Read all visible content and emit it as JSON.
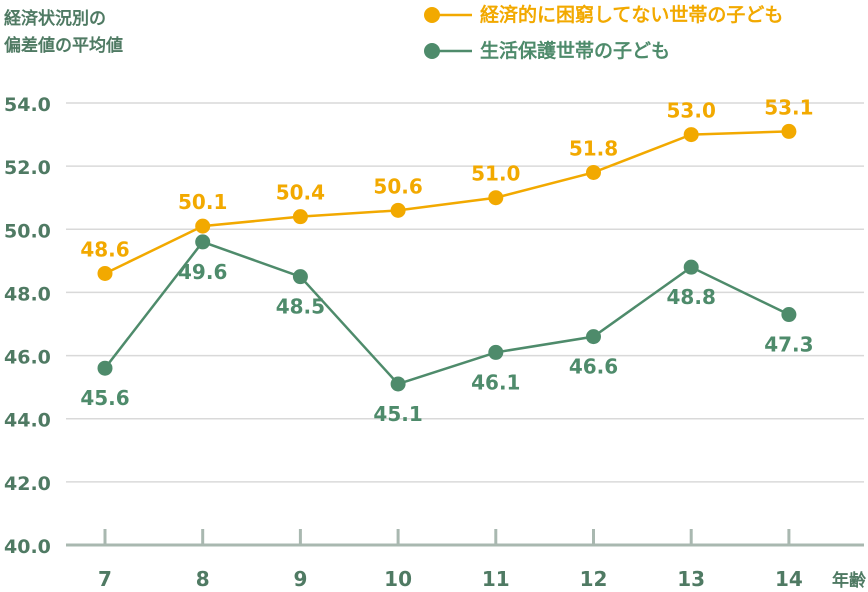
{
  "chart_data": {
    "type": "line",
    "ylabel_lines": [
      "経済状況別の",
      "偏差値の平均値"
    ],
    "xlabel": "年齢",
    "categories": [
      "7",
      "8",
      "9",
      "10",
      "11",
      "12",
      "13",
      "14"
    ],
    "ylim": [
      40.0,
      54.0
    ],
    "yticks": [
      "40.0",
      "42.0",
      "44.0",
      "46.0",
      "48.0",
      "50.0",
      "52.0",
      "54.0"
    ],
    "grid": true,
    "legend_position": "top-right",
    "series": [
      {
        "name": "経済的に困窮してない世帯の子ども",
        "color": "#f2a900",
        "values": [
          48.6,
          50.1,
          50.4,
          50.6,
          51.0,
          51.8,
          53.0,
          53.1
        ],
        "labels": [
          "48.6",
          "50.1",
          "50.4",
          "50.6",
          "51.0",
          "51.8",
          "53.0",
          "53.1"
        ]
      },
      {
        "name": "生活保護世帯の子ども",
        "color": "#4e8b6b",
        "values": [
          45.6,
          49.6,
          48.5,
          45.1,
          46.1,
          46.6,
          48.8,
          47.3
        ],
        "labels": [
          "45.6",
          "49.6",
          "48.5",
          "45.1",
          "46.1",
          "46.6",
          "48.8",
          "47.3"
        ]
      }
    ],
    "colors": {
      "axis_text": "#4f7a63",
      "grid": "#d9d9d9",
      "axis_line": "#a9b8b0"
    }
  }
}
